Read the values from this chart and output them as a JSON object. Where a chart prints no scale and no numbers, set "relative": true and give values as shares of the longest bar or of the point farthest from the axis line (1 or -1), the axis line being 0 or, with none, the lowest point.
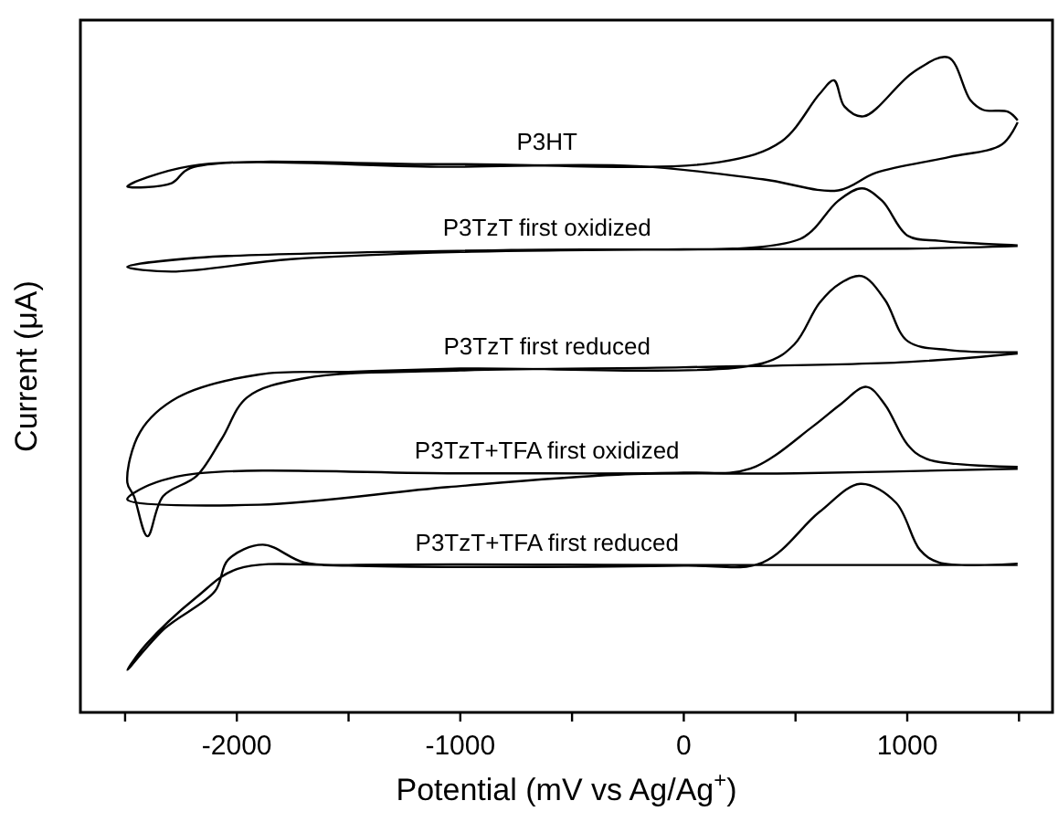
{
  "chart_data": {
    "type": "line",
    "relative": true,
    "xlabel": "Potential (mV vs Ag/Ag$^{+}$)",
    "ylabel": "Current (μA)",
    "xlim": [
      -2700,
      1650
    ],
    "xticks": [
      {
        "value": -2500,
        "label": null
      },
      -2000,
      {
        "value": -1500,
        "label": null
      },
      -1000,
      {
        "value": -500,
        "label": null
      },
      0,
      {
        "value": 500,
        "label": null
      },
      1000,
      {
        "value": 1500,
        "label": null
      }
    ],
    "grid": false,
    "marker": "none",
    "line_style": "solid",
    "series": [
      {
        "name": "P3HT",
        "color": "#000000",
        "x": [
          1494,
          1451,
          1339,
          1282,
          1184,
          1029,
          804,
          719,
          672,
          607,
          438,
          157,
          -1054,
          -2208,
          -2490,
          -2292,
          -2208,
          -1054,
          -210,
          353,
          691,
          860,
          1189,
          1423,
          1494
        ],
        "values": [
          0.904,
          0.917,
          0.92,
          0.935,
          1.0,
          0.978,
          0.91,
          0.925,
          0.965,
          0.944,
          0.872,
          0.84,
          0.837,
          0.834,
          0.803,
          0.808,
          0.831,
          0.833,
          0.834,
          0.814,
          0.797,
          0.824,
          0.848,
          0.867,
          0.901
        ]
      },
      {
        "name": "P3TzT first oxidized",
        "color": "#000000",
        "x": [
          1494,
          1311,
          1142,
          1001,
          888,
          798,
          691,
          579,
          522,
          353,
          -772,
          -2180,
          -2490,
          -2292,
          -1758,
          -1000,
          0,
          1000,
          1494
        ],
        "values": [
          0.713,
          0.716,
          0.72,
          0.728,
          0.781,
          0.8,
          0.781,
          0.737,
          0.723,
          0.711,
          0.706,
          0.694,
          0.68,
          0.673,
          0.692,
          0.703,
          0.707,
          0.708,
          0.712
        ]
      },
      {
        "name": "P3TzT first reduced",
        "color": "#000000",
        "x": [
          1494,
          1191,
          1001,
          900,
          798,
          700,
          607,
          495,
          353,
          -1000,
          -1500,
          -1899,
          -2264,
          -2433,
          -2490,
          -2460,
          -2400,
          -2330,
          -2180,
          -2067,
          -1954,
          -1700,
          -1000,
          0,
          1000,
          1494
        ],
        "values": [
          0.55,
          0.553,
          0.567,
          0.63,
          0.666,
          0.655,
          0.625,
          0.562,
          0.533,
          0.525,
          0.52,
          0.516,
          0.481,
          0.428,
          0.351,
          0.33,
          0.269,
          0.33,
          0.361,
          0.418,
          0.481,
          0.51,
          0.522,
          0.527,
          0.535,
          0.548
        ]
      },
      {
        "name": "P3TzT+TFA first oxidized",
        "color": "#000000",
        "x": [
          1494,
          1086,
          1001,
          900,
          818,
          700,
          579,
          297,
          0,
          -1000,
          -2237,
          -2461,
          -2490,
          -1899,
          -1054,
          -294,
          500,
          1494
        ],
        "values": [
          0.375,
          0.387,
          0.409,
          0.47,
          0.497,
          0.47,
          0.437,
          0.372,
          0.366,
          0.365,
          0.362,
          0.335,
          0.325,
          0.317,
          0.344,
          0.363,
          0.365,
          0.372
        ]
      },
      {
        "name": "P3TzT+TFA first reduced",
        "color": "#000000",
        "x": [
          1494,
          1142,
          1057,
          950,
          790,
          607,
          353,
          0,
          -1500,
          -1701,
          -1884,
          -2039,
          -2098,
          -2323,
          -2490,
          -2405,
          -2180,
          -1997,
          -1500,
          0,
          1494
        ],
        "values": [
          0.227,
          0.229,
          0.248,
          0.32,
          0.349,
          0.306,
          0.229,
          0.224,
          0.224,
          0.229,
          0.256,
          0.233,
          0.185,
          0.128,
          0.065,
          0.104,
          0.176,
          0.219,
          0.225,
          0.225,
          0.225
        ]
      }
    ]
  }
}
